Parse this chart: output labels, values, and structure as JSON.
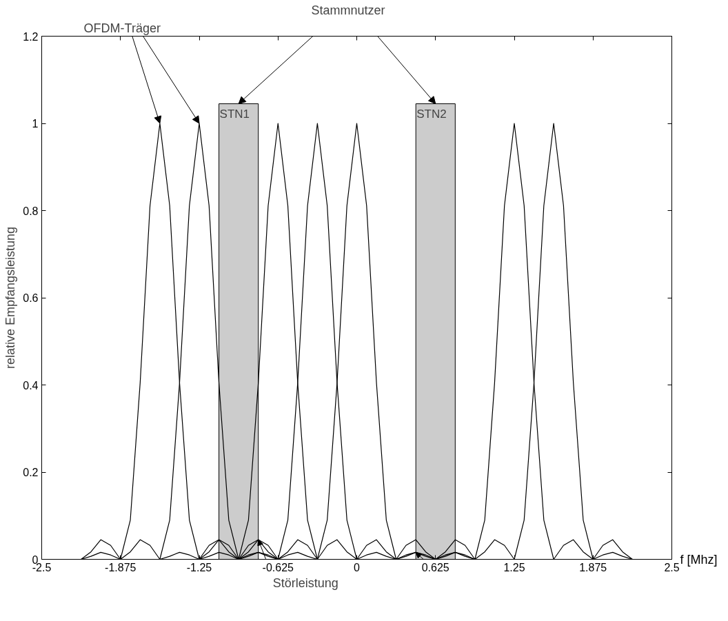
{
  "chart_data": {
    "type": "line",
    "xlabel": "f [Mhz]",
    "ylabel": "relative Empfangsleistung",
    "x": [
      -2.1875,
      -2.109375,
      -2.03125,
      -1.953125,
      -1.875,
      -1.796875,
      -1.71875,
      -1.640625,
      -1.5625,
      -1.484375,
      -1.40625,
      -1.328125,
      -1.25,
      -1.171875,
      -1.09375,
      -1.015625,
      -0.9375,
      -0.859375,
      -0.78125,
      -0.703125,
      -0.625,
      -0.546875,
      -0.46875,
      -0.390625,
      -0.3125,
      -0.234375,
      -0.15625,
      -0.078125,
      0,
      0.078125,
      0.15625,
      0.234375,
      0.3125,
      0.390625,
      0.46875,
      0.546875,
      0.625,
      0.703125,
      0.78125,
      0.859375,
      0.9375,
      1.015625,
      1.09375,
      1.171875,
      1.25,
      1.328125,
      1.40625,
      1.484375,
      1.5625,
      1.640625,
      1.71875,
      1.796875,
      1.875,
      1.953125,
      2.03125,
      2.109375,
      2.1875
    ],
    "series": [
      {
        "color": "#000000",
        "values": [
          0,
          0.017,
          0.045,
          0.032,
          0,
          0.09,
          0.405,
          0.811,
          1,
          0.811,
          0.405,
          0.09,
          0,
          0.032,
          0.045,
          0.017,
          0,
          0.01,
          0.016,
          0.007,
          0,
          0,
          0,
          0,
          0,
          0,
          0,
          0,
          0,
          0,
          0,
          0,
          0,
          0,
          0,
          0,
          0,
          0,
          0,
          0,
          0,
          0,
          0,
          0,
          0,
          0,
          0,
          0,
          0,
          0,
          0,
          0,
          0,
          0,
          0,
          0,
          0
        ]
      },
      {
        "color": "#000000",
        "values": [
          0,
          0.007,
          0.016,
          0.01,
          0,
          0.017,
          0.045,
          0.032,
          0,
          0.09,
          0.405,
          0.811,
          1,
          0.811,
          0.405,
          0.09,
          0,
          0.032,
          0.045,
          0.017,
          0,
          0.01,
          0.016,
          0.007,
          0,
          0,
          0,
          0,
          0,
          0,
          0,
          0,
          0,
          0,
          0,
          0,
          0,
          0,
          0,
          0,
          0,
          0,
          0,
          0,
          0,
          0,
          0,
          0,
          0,
          0,
          0,
          0,
          0,
          0,
          0,
          0,
          0
        ]
      },
      {
        "color": "#000000",
        "values": [
          0,
          0,
          0,
          0,
          0,
          0,
          0,
          0,
          0,
          0.007,
          0.016,
          0.01,
          0,
          0.017,
          0.045,
          0.032,
          0,
          0.09,
          0.405,
          0.811,
          1,
          0.811,
          0.405,
          0.09,
          0,
          0.032,
          0.045,
          0.017,
          0,
          0.01,
          0.016,
          0.007,
          0,
          0,
          0,
          0,
          0,
          0,
          0,
          0,
          0,
          0,
          0,
          0,
          0,
          0,
          0,
          0,
          0,
          0,
          0,
          0,
          0,
          0,
          0,
          0,
          0
        ]
      },
      {
        "color": "#000000",
        "values": [
          0,
          0,
          0,
          0,
          0,
          0,
          0,
          0,
          0,
          0,
          0,
          0,
          0,
          0.007,
          0.016,
          0.01,
          0,
          0.017,
          0.045,
          0.032,
          0,
          0.09,
          0.405,
          0.811,
          1,
          0.811,
          0.405,
          0.09,
          0,
          0.032,
          0.045,
          0.017,
          0,
          0.01,
          0.016,
          0.007,
          0,
          0,
          0,
          0,
          0,
          0,
          0,
          0,
          0,
          0,
          0,
          0,
          0,
          0,
          0,
          0,
          0,
          0,
          0,
          0,
          0
        ]
      },
      {
        "color": "#000000",
        "values": [
          0,
          0,
          0,
          0,
          0,
          0,
          0,
          0,
          0,
          0,
          0,
          0,
          0,
          0,
          0,
          0,
          0,
          0.007,
          0.016,
          0.01,
          0,
          0.017,
          0.045,
          0.032,
          0,
          0.09,
          0.405,
          0.811,
          1,
          0.811,
          0.405,
          0.09,
          0,
          0.032,
          0.045,
          0.017,
          0,
          0.01,
          0.016,
          0.007,
          0,
          0,
          0,
          0,
          0,
          0,
          0,
          0,
          0,
          0,
          0,
          0,
          0,
          0,
          0,
          0,
          0
        ]
      },
      {
        "color": "#000000",
        "values": [
          0,
          0,
          0,
          0,
          0,
          0,
          0,
          0,
          0,
          0,
          0,
          0,
          0,
          0,
          0,
          0,
          0,
          0,
          0,
          0,
          0,
          0,
          0,
          0,
          0,
          0,
          0,
          0,
          0,
          0,
          0,
          0,
          0,
          0.007,
          0.016,
          0.01,
          0,
          0.017,
          0.045,
          0.032,
          0,
          0.09,
          0.405,
          0.811,
          1,
          0.811,
          0.405,
          0.09,
          0,
          0.032,
          0.045,
          0.017,
          0,
          0.01,
          0.016,
          0.007,
          0
        ]
      },
      {
        "color": "#000000",
        "values": [
          0,
          0,
          0,
          0,
          0,
          0,
          0,
          0,
          0,
          0,
          0,
          0,
          0,
          0,
          0,
          0,
          0,
          0,
          0,
          0,
          0,
          0,
          0,
          0,
          0,
          0,
          0,
          0,
          0,
          0,
          0,
          0,
          0,
          0,
          0,
          0,
          0,
          0.007,
          0.016,
          0.01,
          0,
          0.017,
          0.045,
          0.032,
          0,
          0.09,
          0.405,
          0.811,
          1,
          0.811,
          0.405,
          0.09,
          0,
          0.032,
          0.045,
          0.017,
          0
        ]
      },
      {
        "type": "bar",
        "x": [
          -0.9375,
          0.625
        ],
        "color": "#cccccc",
        "values": [
          1.045,
          1.045
        ],
        "value_labels": [
          "STN1",
          "STN2"
        ]
      }
    ],
    "annotations": [
      "OFDM-Träger",
      {
        "text": "Stammnutzer",
        "x": -0.9375,
        "y": 1.045
      },
      "Störleistung"
    ],
    "xlim": [
      -2.5,
      2.5
    ],
    "ylim": [
      0,
      1.2
    ],
    "xticks": [
      -2.5,
      -1.875,
      -1.25,
      -0.625,
      0,
      0.625,
      1.25,
      1.875,
      2.5
    ],
    "yticks": [
      0,
      0.2,
      0.4,
      0.6,
      0.8,
      1,
      1.2
    ],
    "grid": false
  }
}
